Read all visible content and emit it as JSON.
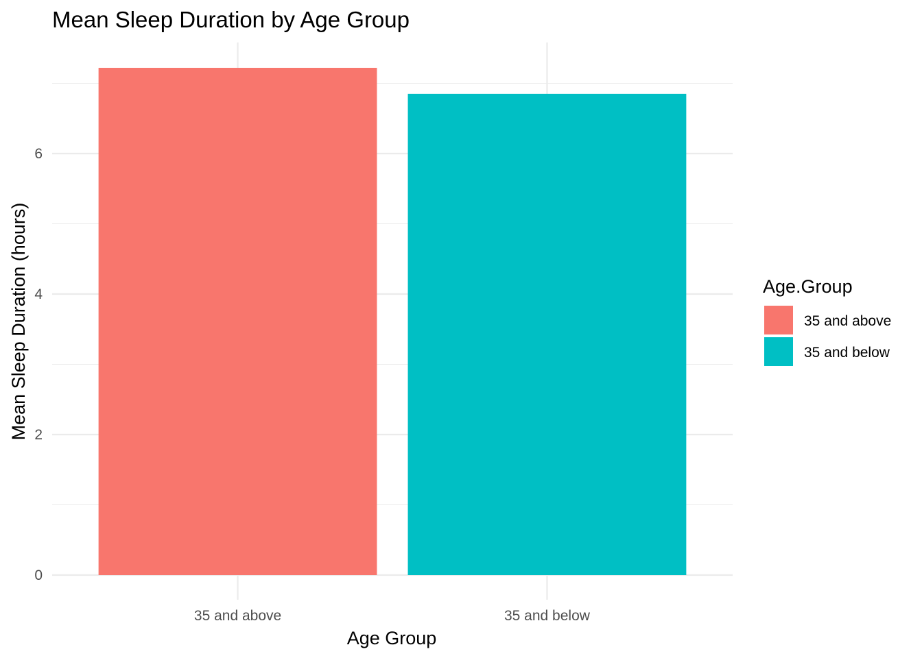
{
  "chart_data": {
    "type": "bar",
    "title": "Mean Sleep Duration by Age Group",
    "xlabel": "Age Group",
    "ylabel": "Mean Sleep Duration (hours)",
    "categories": [
      "35 and above",
      "35 and below"
    ],
    "values": [
      7.22,
      6.85
    ],
    "colors": [
      "#F8766D",
      "#00BFC4"
    ],
    "ylim": [
      0,
      7.58
    ],
    "yticks": [
      0,
      2,
      4,
      6
    ],
    "grid": true,
    "legend": {
      "title": "Age.Group",
      "position": "right",
      "entries": [
        "35 and above",
        "35 and below"
      ]
    }
  }
}
